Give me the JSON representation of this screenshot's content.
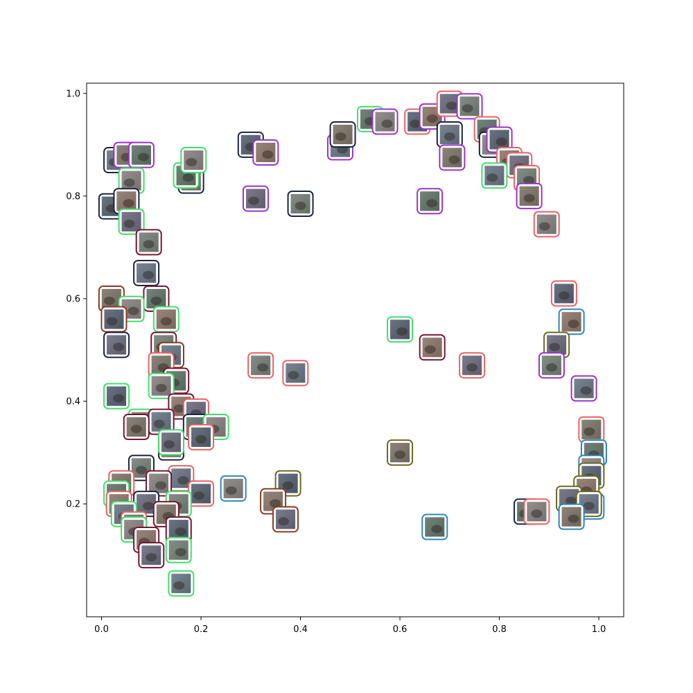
{
  "chart_data": {
    "type": "scatter",
    "title": "",
    "xlabel": "",
    "ylabel": "",
    "xlim": [
      -0.03,
      1.05
    ],
    "ylim": [
      -0.02,
      1.02
    ],
    "xticks": [
      0.0,
      0.2,
      0.4,
      0.6,
      0.8,
      1.0
    ],
    "yticks": [
      0.2,
      0.4,
      0.6,
      0.8,
      1.0
    ],
    "xtick_labels": [
      "0.0",
      "0.2",
      "0.4",
      "0.6",
      "0.8",
      "1.0"
    ],
    "ytick_labels": [
      "0.2",
      "0.4",
      "0.6",
      "0.8",
      "1.0"
    ],
    "grid": false,
    "legend": "none",
    "marker": "image-thumbnail",
    "class_colors": {
      "navy": "#1b2440",
      "purple": "#9b30d0",
      "green": "#3fe06a",
      "salmon": "#ee5f63",
      "maroon": "#7a1430",
      "brown": "#8a3a1e",
      "blue": "#2a86c0",
      "olive": "#6b6a1c"
    },
    "points": [
      {
        "x": 0.03,
        "y": 0.87,
        "color": "navy"
      },
      {
        "x": 0.05,
        "y": 0.88,
        "color": "purple"
      },
      {
        "x": 0.08,
        "y": 0.88,
        "color": "purple"
      },
      {
        "x": 0.06,
        "y": 0.83,
        "color": "green"
      },
      {
        "x": 0.02,
        "y": 0.78,
        "color": "navy"
      },
      {
        "x": 0.05,
        "y": 0.79,
        "color": "navy"
      },
      {
        "x": 0.06,
        "y": 0.75,
        "color": "green"
      },
      {
        "x": 0.095,
        "y": 0.71,
        "color": "maroon"
      },
      {
        "x": 0.09,
        "y": 0.65,
        "color": "navy"
      },
      {
        "x": 0.02,
        "y": 0.6,
        "color": "brown"
      },
      {
        "x": 0.11,
        "y": 0.6,
        "color": "maroon"
      },
      {
        "x": 0.06,
        "y": 0.58,
        "color": "green"
      },
      {
        "x": 0.025,
        "y": 0.56,
        "color": "brown"
      },
      {
        "x": 0.13,
        "y": 0.56,
        "color": "green"
      },
      {
        "x": 0.03,
        "y": 0.51,
        "color": "navy"
      },
      {
        "x": 0.125,
        "y": 0.51,
        "color": "maroon"
      },
      {
        "x": 0.14,
        "y": 0.49,
        "color": "brown"
      },
      {
        "x": 0.12,
        "y": 0.47,
        "color": "salmon"
      },
      {
        "x": 0.15,
        "y": 0.44,
        "color": "maroon"
      },
      {
        "x": 0.12,
        "y": 0.43,
        "color": "green"
      },
      {
        "x": 0.03,
        "y": 0.41,
        "color": "green"
      },
      {
        "x": 0.16,
        "y": 0.39,
        "color": "maroon"
      },
      {
        "x": 0.19,
        "y": 0.38,
        "color": "salmon"
      },
      {
        "x": 0.08,
        "y": 0.36,
        "color": "green"
      },
      {
        "x": 0.12,
        "y": 0.36,
        "color": "maroon"
      },
      {
        "x": 0.07,
        "y": 0.35,
        "color": "maroon"
      },
      {
        "x": 0.19,
        "y": 0.35,
        "color": "navy"
      },
      {
        "x": 0.23,
        "y": 0.35,
        "color": "green"
      },
      {
        "x": 0.2,
        "y": 0.33,
        "color": "salmon"
      },
      {
        "x": 0.14,
        "y": 0.31,
        "color": "navy"
      },
      {
        "x": 0.14,
        "y": 0.32,
        "color": "green"
      },
      {
        "x": 0.08,
        "y": 0.27,
        "color": "navy"
      },
      {
        "x": 0.16,
        "y": 0.25,
        "color": "salmon"
      },
      {
        "x": 0.04,
        "y": 0.24,
        "color": "salmon"
      },
      {
        "x": 0.03,
        "y": 0.22,
        "color": "green"
      },
      {
        "x": 0.115,
        "y": 0.24,
        "color": "maroon"
      },
      {
        "x": 0.2,
        "y": 0.22,
        "color": "salmon"
      },
      {
        "x": 0.035,
        "y": 0.2,
        "color": "salmon"
      },
      {
        "x": 0.09,
        "y": 0.2,
        "color": "navy"
      },
      {
        "x": 0.155,
        "y": 0.2,
        "color": "green"
      },
      {
        "x": 0.045,
        "y": 0.18,
        "color": "green"
      },
      {
        "x": 0.13,
        "y": 0.18,
        "color": "maroon"
      },
      {
        "x": 0.065,
        "y": 0.16,
        "color": "salmon"
      },
      {
        "x": 0.065,
        "y": 0.15,
        "color": "green"
      },
      {
        "x": 0.155,
        "y": 0.15,
        "color": "maroon"
      },
      {
        "x": 0.09,
        "y": 0.13,
        "color": "maroon"
      },
      {
        "x": 0.1,
        "y": 0.1,
        "color": "maroon"
      },
      {
        "x": 0.155,
        "y": 0.11,
        "color": "green"
      },
      {
        "x": 0.16,
        "y": 0.045,
        "color": "green"
      },
      {
        "x": 0.18,
        "y": 0.83,
        "color": "navy"
      },
      {
        "x": 0.17,
        "y": 0.84,
        "color": "green"
      },
      {
        "x": 0.185,
        "y": 0.87,
        "color": "green"
      },
      {
        "x": 0.3,
        "y": 0.9,
        "color": "navy"
      },
      {
        "x": 0.33,
        "y": 0.885,
        "color": "purple"
      },
      {
        "x": 0.31,
        "y": 0.795,
        "color": "purple"
      },
      {
        "x": 0.4,
        "y": 0.785,
        "color": "navy"
      },
      {
        "x": 0.48,
        "y": 0.895,
        "color": "purple"
      },
      {
        "x": 0.485,
        "y": 0.92,
        "color": "navy"
      },
      {
        "x": 0.54,
        "y": 0.95,
        "color": "green"
      },
      {
        "x": 0.57,
        "y": 0.945,
        "color": "purple"
      },
      {
        "x": 0.635,
        "y": 0.945,
        "color": "salmon"
      },
      {
        "x": 0.665,
        "y": 0.955,
        "color": "purple"
      },
      {
        "x": 0.7,
        "y": 0.98,
        "color": "salmon"
      },
      {
        "x": 0.74,
        "y": 0.975,
        "color": "purple"
      },
      {
        "x": 0.7,
        "y": 0.92,
        "color": "navy"
      },
      {
        "x": 0.705,
        "y": 0.875,
        "color": "purple"
      },
      {
        "x": 0.775,
        "y": 0.93,
        "color": "salmon"
      },
      {
        "x": 0.785,
        "y": 0.9,
        "color": "navy"
      },
      {
        "x": 0.8,
        "y": 0.91,
        "color": "purple"
      },
      {
        "x": 0.82,
        "y": 0.87,
        "color": "salmon"
      },
      {
        "x": 0.84,
        "y": 0.86,
        "color": "salmon"
      },
      {
        "x": 0.855,
        "y": 0.835,
        "color": "salmon"
      },
      {
        "x": 0.79,
        "y": 0.84,
        "color": "green"
      },
      {
        "x": 0.86,
        "y": 0.8,
        "color": "purple"
      },
      {
        "x": 0.66,
        "y": 0.79,
        "color": "purple"
      },
      {
        "x": 0.895,
        "y": 0.745,
        "color": "salmon"
      },
      {
        "x": 0.93,
        "y": 0.61,
        "color": "salmon"
      },
      {
        "x": 0.945,
        "y": 0.555,
        "color": "blue"
      },
      {
        "x": 0.915,
        "y": 0.51,
        "color": "olive"
      },
      {
        "x": 0.905,
        "y": 0.47,
        "color": "purple"
      },
      {
        "x": 0.97,
        "y": 0.425,
        "color": "purple"
      },
      {
        "x": 0.985,
        "y": 0.345,
        "color": "salmon"
      },
      {
        "x": 0.99,
        "y": 0.3,
        "color": "blue"
      },
      {
        "x": 0.985,
        "y": 0.27,
        "color": "blue"
      },
      {
        "x": 0.985,
        "y": 0.255,
        "color": "olive"
      },
      {
        "x": 0.975,
        "y": 0.23,
        "color": "olive"
      },
      {
        "x": 0.94,
        "y": 0.21,
        "color": "olive"
      },
      {
        "x": 0.985,
        "y": 0.195,
        "color": "blue"
      },
      {
        "x": 0.98,
        "y": 0.2,
        "color": "olive"
      },
      {
        "x": 0.945,
        "y": 0.175,
        "color": "blue"
      },
      {
        "x": 0.855,
        "y": 0.185,
        "color": "navy"
      },
      {
        "x": 0.875,
        "y": 0.185,
        "color": "salmon"
      },
      {
        "x": 0.6,
        "y": 0.54,
        "color": "green"
      },
      {
        "x": 0.665,
        "y": 0.505,
        "color": "maroon"
      },
      {
        "x": 0.745,
        "y": 0.47,
        "color": "salmon"
      },
      {
        "x": 0.32,
        "y": 0.47,
        "color": "salmon"
      },
      {
        "x": 0.39,
        "y": 0.455,
        "color": "salmon"
      },
      {
        "x": 0.6,
        "y": 0.3,
        "color": "olive"
      },
      {
        "x": 0.67,
        "y": 0.155,
        "color": "blue"
      },
      {
        "x": 0.265,
        "y": 0.23,
        "color": "blue"
      },
      {
        "x": 0.375,
        "y": 0.24,
        "color": "olive"
      },
      {
        "x": 0.345,
        "y": 0.205,
        "color": "brown"
      },
      {
        "x": 0.37,
        "y": 0.17,
        "color": "brown"
      }
    ]
  }
}
